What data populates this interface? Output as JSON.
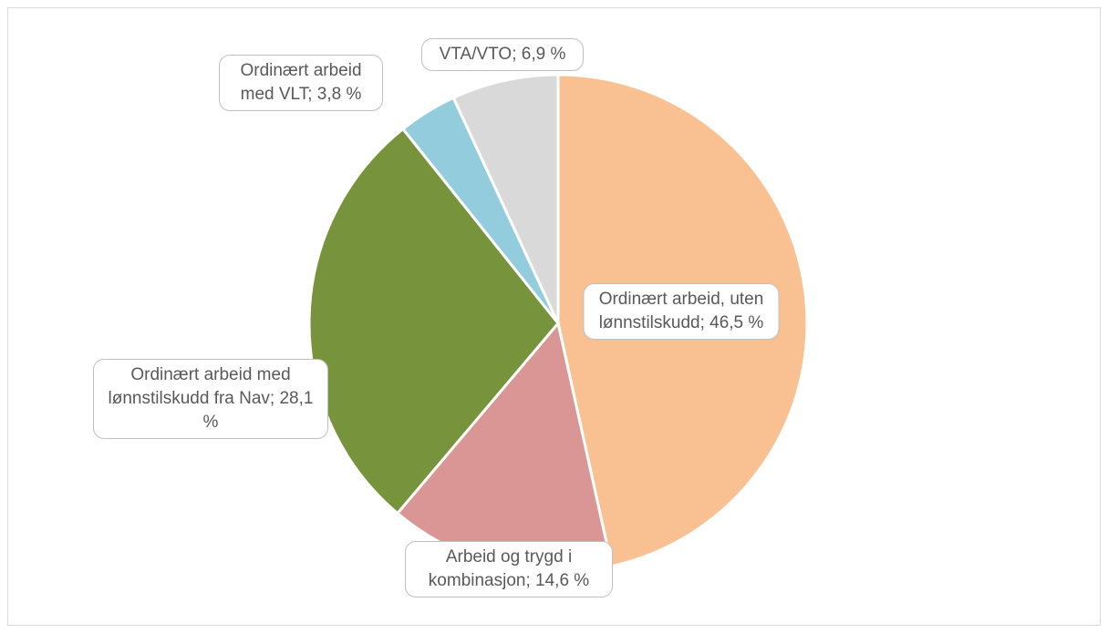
{
  "chart_data": {
    "type": "pie",
    "values": [
      46.5,
      14.6,
      28.1,
      3.8,
      6.9
    ],
    "value_labels": [
      "Ordinært arbeid, uten lønnstilskudd; 46,5 %",
      "Arbeid og trygd i kombinasjon; 14,6 %",
      "Ordinært arbeid med lønnstilskudd fra Nav; 28,1 %",
      "Ordinært arbeid med VLT; 3,8 %",
      "VTA/VTO; 6,9 %"
    ],
    "colors": [
      "#f9c192",
      "#d99694",
      "#77933c",
      "#93cddd",
      "#d9d9d9"
    ]
  }
}
